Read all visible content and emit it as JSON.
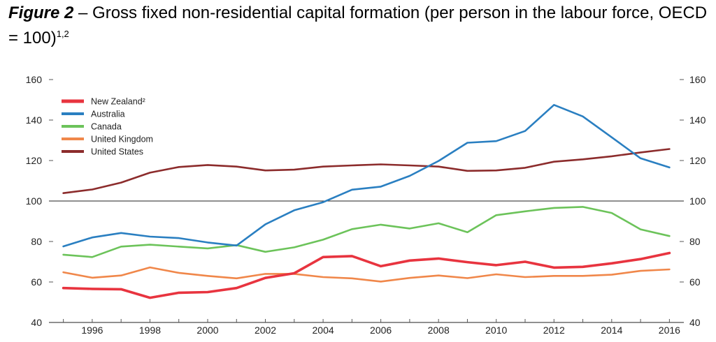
{
  "title": {
    "figure_label": "Figure 2",
    "text": " – Gross fixed non-residential capital formation (per person in the labour force, OECD = 100)",
    "superscript": "1,2"
  },
  "chart_data": {
    "type": "line",
    "x": [
      1995,
      1996,
      1997,
      1998,
      1999,
      2000,
      2001,
      2002,
      2003,
      2004,
      2005,
      2006,
      2007,
      2008,
      2009,
      2010,
      2011,
      2012,
      2013,
      2014,
      2015,
      2016
    ],
    "x_ticks": [
      1996,
      1998,
      2000,
      2002,
      2004,
      2006,
      2008,
      2010,
      2012,
      2014,
      2016
    ],
    "x_tick_labels": [
      "1996",
      "1998",
      "2000",
      "2002",
      "2004",
      "2006",
      "2008",
      "2010",
      "2012",
      "2014",
      "2016"
    ],
    "y_ticks": [
      40,
      60,
      80,
      100,
      120,
      140,
      160
    ],
    "y_tick_labels": [
      "40",
      "60",
      "80",
      "100",
      "120",
      "140",
      "160"
    ],
    "ylim": [
      40,
      160
    ],
    "xlim": [
      1994.5,
      2016.5
    ],
    "reference_line": 100,
    "grid": false,
    "legend_position": "top-left",
    "series": [
      {
        "name": "New Zealand²",
        "color": "#e8343f",
        "values": [
          57,
          56.6,
          56.4,
          52.2,
          54.7,
          55,
          57,
          62,
          64.3,
          72.3,
          72.8,
          67.8,
          70.6,
          71.6,
          69.8,
          68.3,
          70,
          67.1,
          67.5,
          69.2,
          71.3,
          74.3
        ]
      },
      {
        "name": "Australia",
        "color": "#2a7fc1",
        "values": [
          77.6,
          82,
          84.2,
          82.4,
          81.7,
          79.5,
          78,
          88.5,
          95.4,
          99.4,
          105.6,
          107.1,
          112.4,
          119.8,
          128.8,
          129.6,
          134.6,
          147.5,
          141.8,
          131.5,
          121.1,
          116.6
        ]
      },
      {
        "name": "Canada",
        "color": "#6cc35a",
        "values": [
          73.5,
          72.3,
          77.5,
          78.4,
          77.5,
          76.6,
          78.2,
          74.9,
          77.1,
          80.9,
          86.1,
          88.3,
          86.4,
          89,
          84.6,
          93,
          94.9,
          96.6,
          97.1,
          94.1,
          86,
          82.7
        ]
      },
      {
        "name": "United Kingdom",
        "color": "#f0874a",
        "values": [
          64.8,
          62.1,
          63.2,
          67.2,
          64.5,
          63,
          61.8,
          64,
          64,
          62.4,
          61.8,
          60.2,
          62,
          63.2,
          61.9,
          63.8,
          62.4,
          63,
          63,
          63.6,
          65.5,
          66.2
        ]
      },
      {
        "name": "United States",
        "color": "#8c2c2c",
        "values": [
          103.9,
          105.7,
          109.1,
          114,
          116.8,
          117.8,
          117,
          115.1,
          115.5,
          117,
          117.6,
          118.1,
          117.6,
          117,
          114.9,
          115.1,
          116.4,
          119.4,
          120.6,
          122.1,
          124,
          125.7
        ]
      }
    ]
  }
}
